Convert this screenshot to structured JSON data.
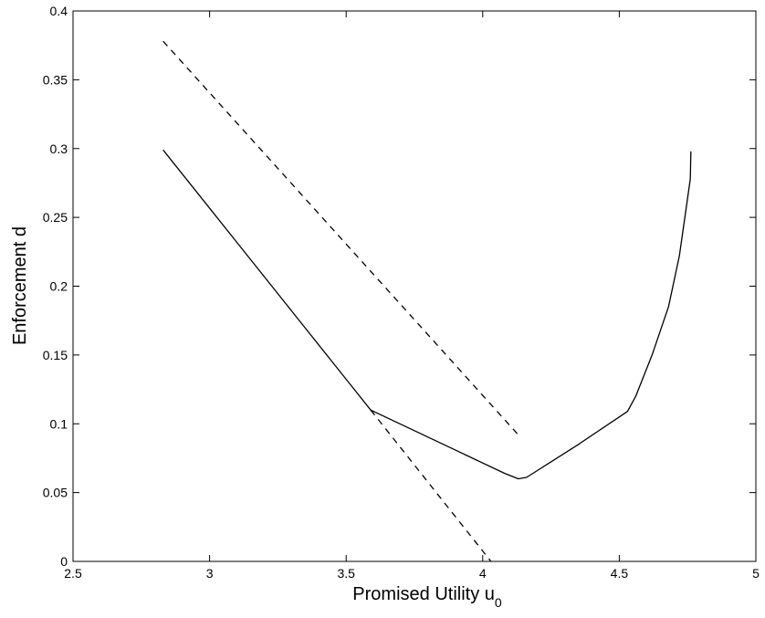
{
  "chart_data": {
    "type": "line",
    "xlabel": "Promised Utility u",
    "xlabel_subscript": "0",
    "ylabel": "Enforcement d",
    "xlim": [
      2.5,
      5
    ],
    "ylim": [
      0,
      0.4
    ],
    "xticks": [
      2.5,
      3,
      3.5,
      4,
      4.5,
      5
    ],
    "xtick_labels": [
      "2.5",
      "3",
      "3.5",
      "4",
      "4.5",
      "5"
    ],
    "yticks": [
      0,
      0.05,
      0.1,
      0.15,
      0.2,
      0.25,
      0.3,
      0.35,
      0.4
    ],
    "ytick_labels": [
      "0",
      "0.05",
      "0.1",
      "0.15",
      "0.2",
      "0.25",
      "0.3",
      "0.35",
      "0.4"
    ],
    "grid": false,
    "series": [
      {
        "style": "solid",
        "color": "#000000",
        "x": [
          2.83,
          3.59,
          4.08,
          4.13,
          4.16,
          4.2,
          4.35,
          4.53,
          4.56,
          4.62,
          4.68,
          4.72,
          4.745,
          4.76,
          4.762
        ],
        "y": [
          0.299,
          0.11,
          0.064,
          0.06,
          0.061,
          0.066,
          0.085,
          0.109,
          0.12,
          0.15,
          0.185,
          0.222,
          0.257,
          0.278,
          0.298
        ]
      },
      {
        "style": "dashed",
        "color": "#000000",
        "x": [
          2.83,
          4.13
        ],
        "y": [
          0.378,
          0.092
        ]
      },
      {
        "style": "dashed",
        "color": "#000000",
        "x": [
          3.59,
          4.03
        ],
        "y": [
          0.11,
          0.0
        ]
      }
    ]
  }
}
